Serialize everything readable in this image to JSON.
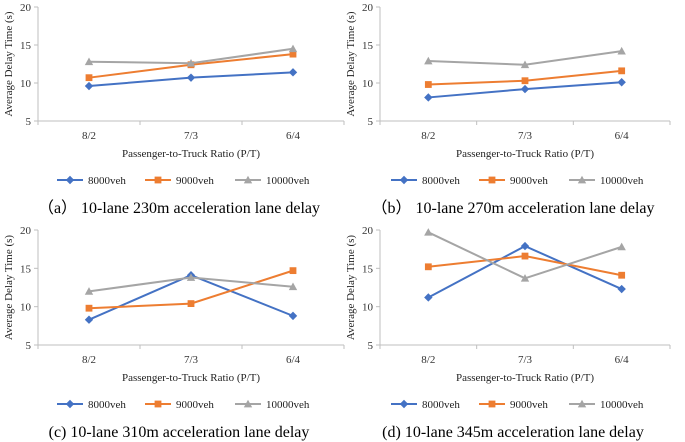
{
  "figure_caption_note": "",
  "chart_data": [
    {
      "type": "line",
      "caption": "（a） 10-lane 230m acceleration lane delay",
      "categories": [
        "8/2",
        "7/3",
        "6/4"
      ],
      "xlabel": "Passenger-to-Truck Ratio (P/T)",
      "ylabel": "Average Delay Time (s)",
      "ylim": [
        5,
        20
      ],
      "yticks": [
        5,
        10,
        15,
        20
      ],
      "series": [
        {
          "name": "8000veh",
          "color": "#4472c4",
          "marker": "diamond",
          "values": [
            9.6,
            10.7,
            11.4
          ]
        },
        {
          "name": "9000veh",
          "color": "#ed7d31",
          "marker": "square",
          "values": [
            10.7,
            12.4,
            13.8
          ]
        },
        {
          "name": "10000veh",
          "color": "#a5a5a5",
          "marker": "triangle",
          "values": [
            12.8,
            12.6,
            14.5
          ]
        }
      ]
    },
    {
      "type": "line",
      "caption": "（b） 10-lane 270m acceleration lane delay",
      "categories": [
        "8/2",
        "7/3",
        "6/4"
      ],
      "xlabel": "Passenger-to-Truck Ratio (P/T)",
      "ylabel": "Average Delay Time (s)",
      "ylim": [
        5,
        20
      ],
      "yticks": [
        5,
        10,
        15,
        20
      ],
      "series": [
        {
          "name": "8000veh",
          "color": "#4472c4",
          "marker": "diamond",
          "values": [
            8.1,
            9.2,
            10.1
          ]
        },
        {
          "name": "9000veh",
          "color": "#ed7d31",
          "marker": "square",
          "values": [
            9.8,
            10.3,
            11.6
          ]
        },
        {
          "name": "10000veh",
          "color": "#a5a5a5",
          "marker": "triangle",
          "values": [
            12.9,
            12.4,
            14.2
          ]
        }
      ]
    },
    {
      "type": "line",
      "caption": "(c) 10-lane 310m acceleration lane delay",
      "categories": [
        "8/2",
        "7/3",
        "6/4"
      ],
      "xlabel": "Passenger-to-Truck Ratio (P/T)",
      "ylabel": "Average Delay Time (s)",
      "ylim": [
        5,
        20
      ],
      "yticks": [
        5,
        10,
        15,
        20
      ],
      "series": [
        {
          "name": "8000veh",
          "color": "#4472c4",
          "marker": "diamond",
          "values": [
            8.3,
            14.1,
            8.8
          ]
        },
        {
          "name": "9000veh",
          "color": "#ed7d31",
          "marker": "square",
          "values": [
            9.8,
            10.4,
            14.7
          ]
        },
        {
          "name": "10000veh",
          "color": "#a5a5a5",
          "marker": "triangle",
          "values": [
            12.0,
            13.8,
            12.6
          ]
        }
      ]
    },
    {
      "type": "line",
      "caption": "(d) 10-lane 345m acceleration lane delay",
      "categories": [
        "8/2",
        "7/3",
        "6/4"
      ],
      "xlabel": "Passenger-to-Truck Ratio (P/T)",
      "ylabel": "Average Delay Time (s)",
      "ylim": [
        5,
        20
      ],
      "yticks": [
        5,
        10,
        15,
        20
      ],
      "series": [
        {
          "name": "8000veh",
          "color": "#4472c4",
          "marker": "diamond",
          "values": [
            11.2,
            17.9,
            12.3
          ]
        },
        {
          "name": "9000veh",
          "color": "#ed7d31",
          "marker": "square",
          "values": [
            15.2,
            16.6,
            14.1
          ]
        },
        {
          "name": "10000veh",
          "color": "#a5a5a5",
          "marker": "triangle",
          "values": [
            19.7,
            13.7,
            17.8
          ]
        }
      ]
    }
  ]
}
